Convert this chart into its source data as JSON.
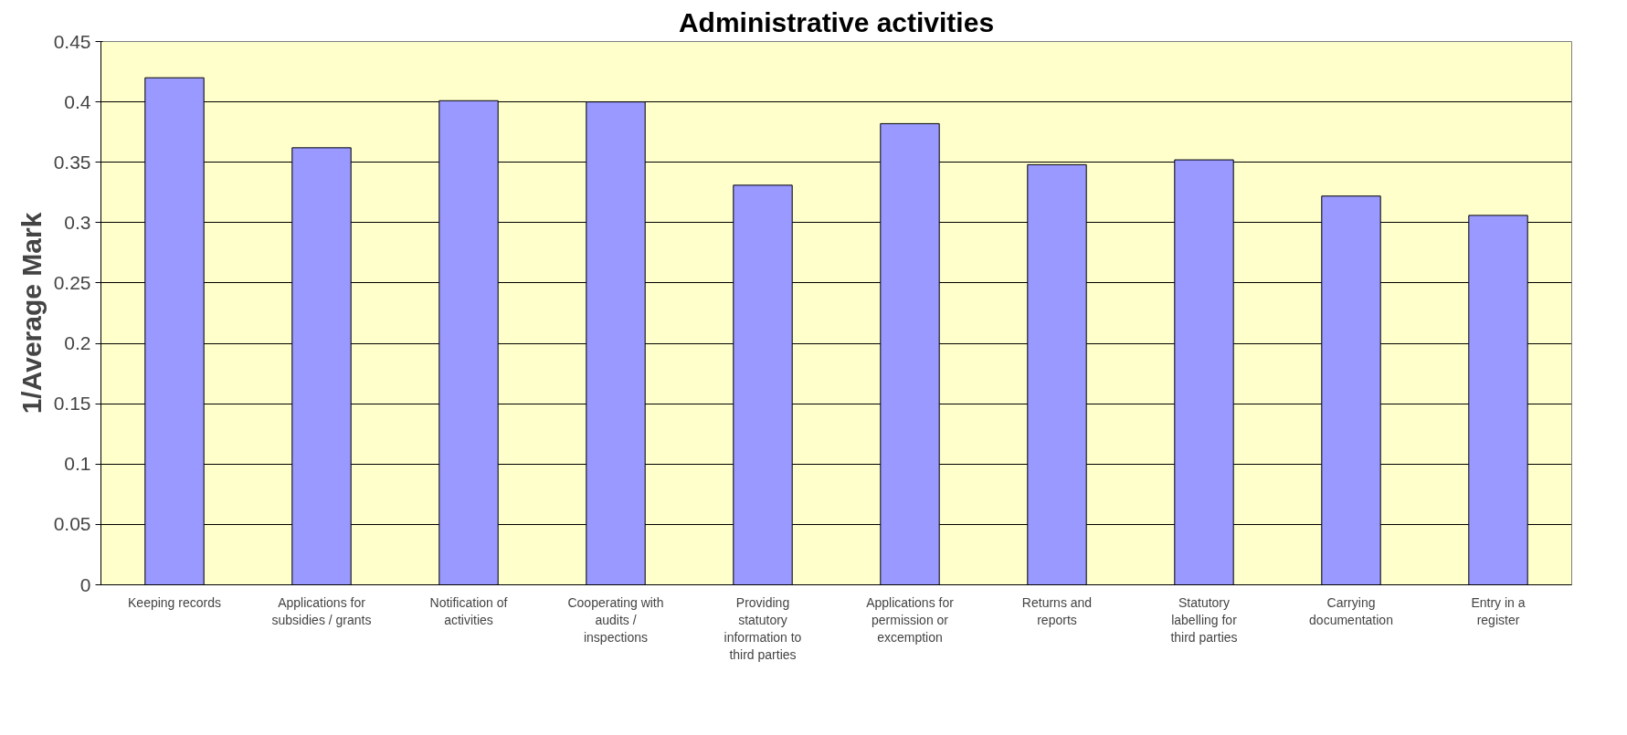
{
  "chart_data": {
    "type": "bar",
    "title": "Administrative activities",
    "ylabel": "1/Average Mark",
    "categories": [
      "Keeping records",
      "Applications for subsidies / grants",
      "Notification of activities",
      "Cooperating with audits / inspections",
      "Providing statutory information to third parties",
      "Applications for permission or excemption",
      "Returns and reports",
      "Statutory labelling for third parties",
      "Carrying documentation",
      "Entry in a register"
    ],
    "values": [
      0.42,
      0.362,
      0.401,
      0.4,
      0.331,
      0.382,
      0.348,
      0.352,
      0.322,
      0.306
    ],
    "color": "#9999ff",
    "ylim": [
      0,
      0.45
    ],
    "yticks": [
      0,
      0.05,
      0.1,
      0.15,
      0.2,
      0.25,
      0.3,
      0.35,
      0.4,
      0.45
    ],
    "grid": "y"
  }
}
